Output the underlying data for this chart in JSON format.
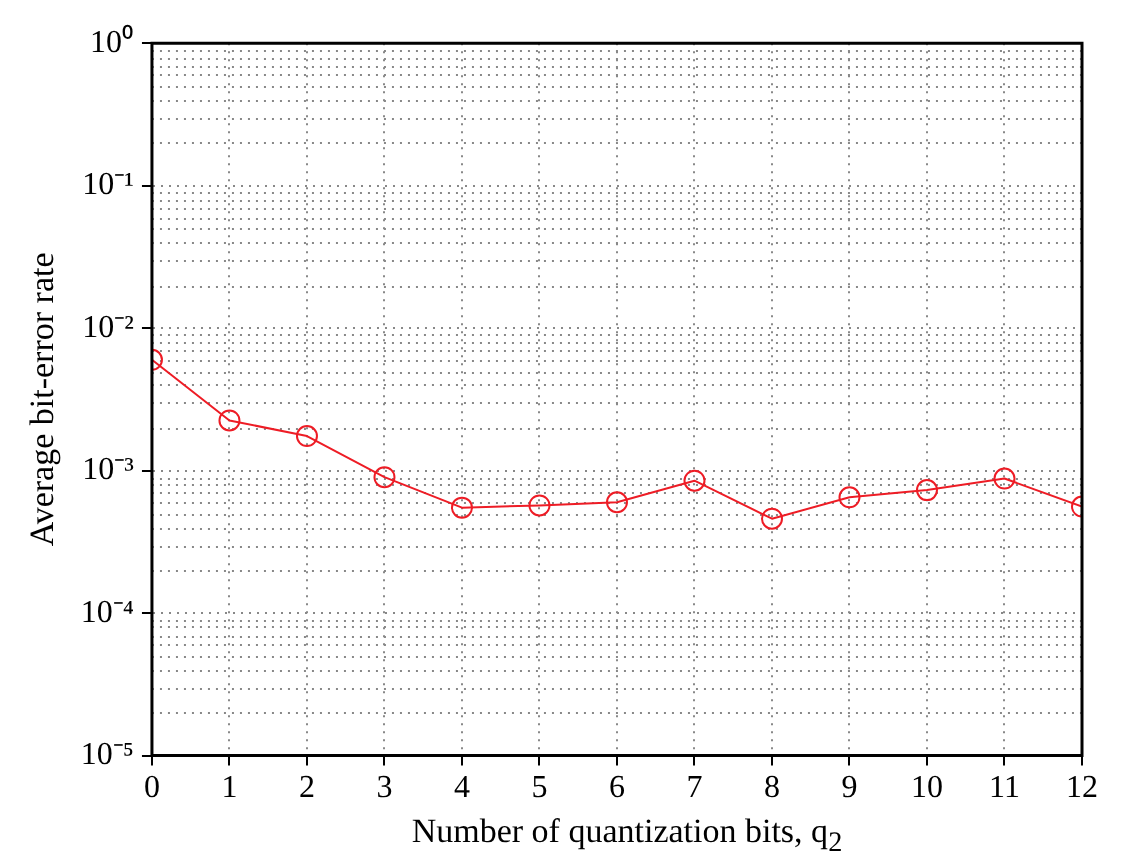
{
  "chart_data": {
    "type": "line",
    "xlabel": "Number of quantization bits, q$_{2}$",
    "ylabel": "Average bit-error rate",
    "x": [
      0,
      1,
      2,
      3,
      4,
      5,
      6,
      7,
      8,
      9,
      10,
      11,
      12
    ],
    "series": [
      {
        "color": "#ee1c25",
        "values": [
          0.006,
          0.00225,
          0.00175,
          0.0009,
          0.00055,
          0.00057,
          0.0006,
          0.00085,
          0.00046,
          0.00065,
          0.00073,
          0.00088,
          0.00056
        ]
      }
    ],
    "xlim": [
      0,
      12
    ],
    "xticks": [
      0,
      1,
      2,
      3,
      4,
      5,
      6,
      7,
      8,
      9,
      10,
      11,
      12
    ],
    "ylim": [
      1e-05,
      1
    ],
    "yticks": [
      {
        "value": 1e-05,
        "label": "10⁻⁵"
      },
      {
        "value": 0.0001,
        "label": "10⁻⁴"
      },
      {
        "value": 0.001,
        "label": "10⁻³"
      },
      {
        "value": 0.01,
        "label": "10⁻²"
      },
      {
        "value": 0.1,
        "label": "10⁻¹"
      },
      {
        "value": 1,
        "label": "10⁰"
      }
    ],
    "log": "y",
    "grid": true,
    "legend": false,
    "marker": "circle",
    "line_style": "solid"
  }
}
